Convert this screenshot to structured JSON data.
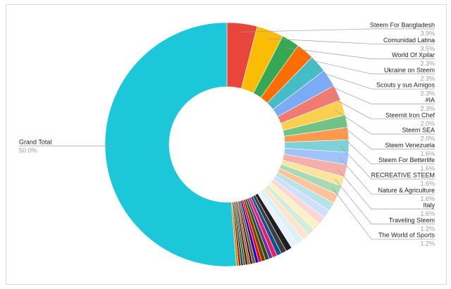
{
  "chart_data": {
    "type": "pie",
    "donut": true,
    "legend": "none",
    "labeled_slices": [
      {
        "name": "Grand Total",
        "percent_label": "50.0%",
        "value": 50.0,
        "color": "#1bc7d8"
      },
      {
        "name": "Steem For Bangladesh",
        "percent_label": "3.9%",
        "value": 3.9,
        "color": "#e8463c"
      },
      {
        "name": "Comunidad Latina",
        "percent_label": "3.5%",
        "value": 3.5,
        "color": "#fbbc05"
      },
      {
        "name": "World Of Xpilar",
        "percent_label": "2.3%",
        "value": 2.3,
        "color": "#34a853"
      },
      {
        "name": "Ukraine on Steem",
        "percent_label": "2.3%",
        "value": 2.3,
        "color": "#ff6d01"
      },
      {
        "name": "Scouts y sus Amigos",
        "percent_label": "2.3%",
        "value": 2.3,
        "color": "#46bdc6"
      },
      {
        "name": "#IA",
        "percent_label": "2.3%",
        "value": 2.3,
        "color": "#7baaf7"
      },
      {
        "name": "Steemit Iron Chef",
        "percent_label": "2.0%",
        "value": 2.0,
        "color": "#f07b72"
      },
      {
        "name": "Steem SEA",
        "percent_label": "2.0%",
        "value": 2.0,
        "color": "#fcd04f"
      },
      {
        "name": "Steem Venezuela",
        "percent_label": "1.6%",
        "value": 1.6,
        "color": "#71c287"
      },
      {
        "name": "Steem For Betterlife",
        "percent_label": "1.6%",
        "value": 1.6,
        "color": "#ff994d"
      },
      {
        "name": "RECREATIVE STEEM",
        "percent_label": "1.6%",
        "value": 1.6,
        "color": "#7ed1d7"
      },
      {
        "name": "Nature & Agriculture",
        "percent_label": "1.6%",
        "value": 1.6,
        "color": "#a1c2fa"
      },
      {
        "name": "Italy",
        "percent_label": "1.6%",
        "value": 1.6,
        "color": "#f6aea9"
      },
      {
        "name": "Traveling Steem",
        "percent_label": "1.2%",
        "value": 1.2,
        "color": "#fde49b"
      },
      {
        "name": "The World of Sports",
        "percent_label": "1.2%",
        "value": 1.2,
        "color": "#a8dab5"
      }
    ],
    "unlabeled_slices": [
      {
        "value": 1.2,
        "color": "#ffc599"
      },
      {
        "value": 1.1,
        "color": "#b5e3e8"
      },
      {
        "value": 1.1,
        "color": "#d0e0fc"
      },
      {
        "value": 1.0,
        "color": "#fbd7d4"
      },
      {
        "value": 1.0,
        "color": "#fdf0c4"
      },
      {
        "value": 1.0,
        "color": "#d4edda"
      },
      {
        "value": 0.9,
        "color": "#ffe3cc"
      },
      {
        "value": 0.9,
        "color": "#dbf2f4"
      },
      {
        "value": 0.9,
        "color": "#eaf1fe"
      },
      {
        "value": 0.8,
        "color": "#1f1f1f"
      },
      {
        "value": 0.7,
        "color": "#3c3c3c"
      },
      {
        "value": 0.6,
        "color": "#0b5394"
      },
      {
        "value": 0.6,
        "color": "#e91e63"
      },
      {
        "value": 0.5,
        "color": "#6a329f"
      },
      {
        "value": 0.5,
        "color": "#274e13"
      },
      {
        "value": 0.5,
        "color": "#783f04"
      },
      {
        "value": 0.4,
        "color": "#ff0000"
      },
      {
        "value": 0.4,
        "color": "#0000ff"
      },
      {
        "value": 0.4,
        "color": "#7f6000"
      },
      {
        "value": 0.3,
        "color": "#20124d"
      },
      {
        "value": 0.3,
        "color": "#b45f06"
      },
      {
        "value": 0.3,
        "color": "#4c1130"
      },
      {
        "value": 0.3,
        "color": "#38761d"
      },
      {
        "value": 0.3,
        "color": "#134f5c"
      },
      {
        "value": 0.3,
        "color": "#a61c00"
      },
      {
        "value": 0.3,
        "color": "#bf9000"
      }
    ]
  }
}
